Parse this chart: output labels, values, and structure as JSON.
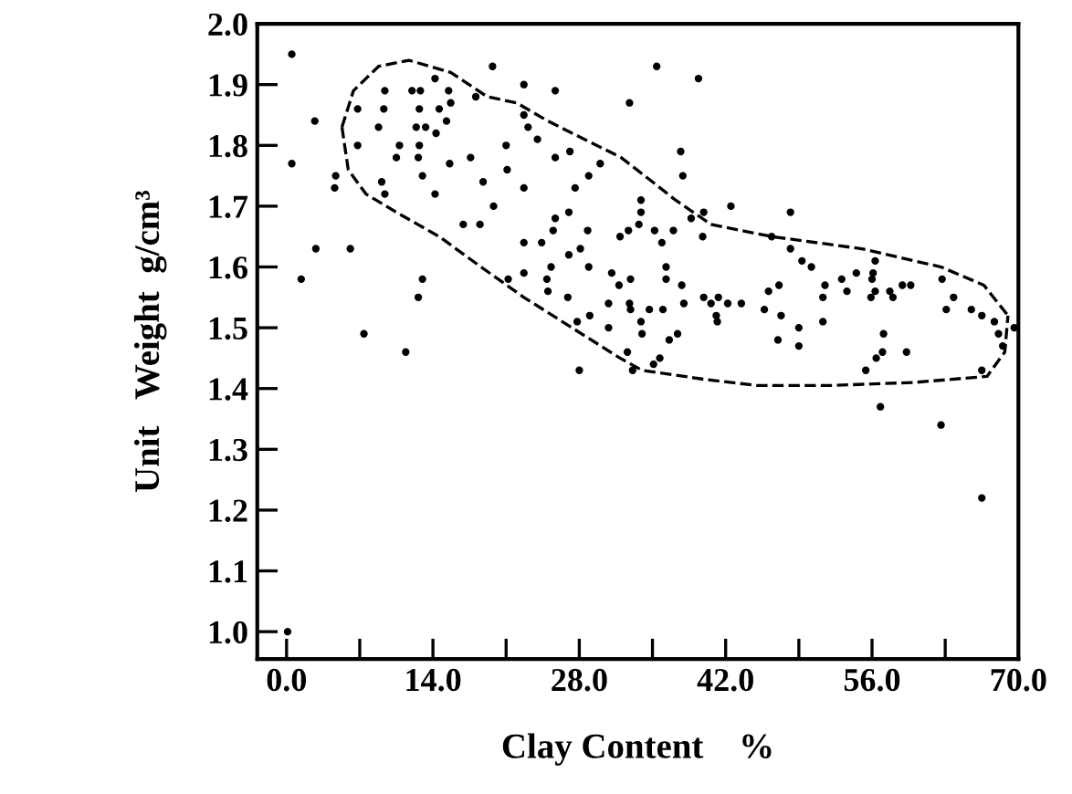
{
  "chart_data": {
    "type": "scatter",
    "xlabel": "Clay Content    %",
    "ylabel": "Unit   Weight  g/cm³",
    "xlim": [
      -2.8,
      70
    ],
    "ylim": [
      0.955,
      2.0
    ],
    "xticks": [
      {
        "value": 0,
        "label": "0.0"
      },
      {
        "value": 7,
        "label": null
      },
      {
        "value": 14,
        "label": "14.0"
      },
      {
        "value": 21,
        "label": null
      },
      {
        "value": 28,
        "label": "28.0"
      },
      {
        "value": 35,
        "label": null
      },
      {
        "value": 42,
        "label": "42.0"
      },
      {
        "value": 49,
        "label": null
      },
      {
        "value": 56,
        "label": "56.0"
      },
      {
        "value": 63,
        "label": null
      },
      {
        "value": 70,
        "label": "70.0"
      }
    ],
    "yticks": [
      {
        "value": 1.0,
        "label": "1.0"
      },
      {
        "value": 1.1,
        "label": "1.1"
      },
      {
        "value": 1.2,
        "label": "1.2"
      },
      {
        "value": 1.3,
        "label": "1.3"
      },
      {
        "value": 1.4,
        "label": "1.4"
      },
      {
        "value": 1.5,
        "label": "1.5"
      },
      {
        "value": 1.6,
        "label": "1.6"
      },
      {
        "value": 1.7,
        "label": "1.7"
      },
      {
        "value": 1.8,
        "label": "1.8"
      },
      {
        "value": 1.9,
        "label": "1.9"
      },
      {
        "value": 2.0,
        "label": "2.0"
      }
    ],
    "series": [
      {
        "color": "#000000",
        "marker": "circle",
        "x": [
          0.5,
          14.2,
          19.7,
          22.7,
          9.4,
          12.0,
          12.8,
          15.5,
          18.1,
          6.8,
          9.3,
          12.7,
          14.6,
          15.7,
          2.7,
          8.8,
          13.3,
          12.4,
          14.3,
          15.3,
          22.7,
          12.7,
          10.8,
          21,
          6.8,
          0.5,
          10.5,
          12.6,
          17.6,
          15.6,
          4.7,
          4.6,
          13,
          9.1,
          9.4,
          21.1,
          18.8,
          14.2,
          22.7,
          19.8,
          16.9,
          18.5,
          2.8,
          6.1,
          22.7,
          1.4,
          13,
          12.6,
          22.7,
          21.2,
          7.4,
          11.4,
          35.4,
          39.4,
          25.7,
          32.8,
          23.1,
          24,
          25.7,
          27.1,
          30,
          28.9,
          37.7,
          37.9,
          27.6,
          33.9,
          33.9,
          27,
          25.7,
          25.5,
          28.8,
          33.7,
          32.7,
          31.9,
          35.2,
          37,
          35.9,
          38.7,
          39.9,
          42.5,
          39.8,
          46.4,
          24.4,
          27,
          28.1,
          25.3,
          28.9,
          31.1,
          31.8,
          32.9,
          36.3,
          36.3,
          24.9,
          25,
          26.9,
          30.8,
          32.8,
          32.9,
          34.7,
          36,
          38,
          37.8,
          39.9,
          40.6,
          41.3,
          42.2,
          43.5,
          41.1,
          41.2,
          45.7,
          46.1,
          47.1,
          27.8,
          29,
          33.9,
          30.8,
          34,
          36.6,
          37.4,
          47,
          32.6,
          35.7,
          35.1,
          28,
          33.1,
          48.2,
          48.2,
          49.3,
          50.2,
          56.3,
          56.1,
          56,
          56.3,
          55.9,
          51.5,
          53.1,
          54.5,
          53.6,
          57.7,
          58,
          58.9,
          59.7,
          62.7,
          63.8,
          63.1,
          65.5,
          66.5,
          67.7,
          68.1,
          68.5,
          69.6,
          51.3,
          51.3,
          47.3,
          49,
          49,
          57.1,
          57,
          56.4,
          55.4,
          59.3,
          66.5,
          56.8,
          62.6,
          66.5,
          0.1
        ],
        "values": [
          1.95,
          1.91,
          1.93,
          1.9,
          1.89,
          1.89,
          1.89,
          1.89,
          1.88,
          1.86,
          1.86,
          1.86,
          1.86,
          1.87,
          1.84,
          1.83,
          1.83,
          1.83,
          1.82,
          1.84,
          1.85,
          1.8,
          1.8,
          1.8,
          1.8,
          1.77,
          1.78,
          1.78,
          1.78,
          1.77,
          1.75,
          1.73,
          1.75,
          1.74,
          1.72,
          1.76,
          1.74,
          1.72,
          1.73,
          1.7,
          1.67,
          1.67,
          1.63,
          1.63,
          1.64,
          1.58,
          1.58,
          1.55,
          1.59,
          1.58,
          1.49,
          1.46,
          1.93,
          1.91,
          1.89,
          1.87,
          1.83,
          1.81,
          1.78,
          1.79,
          1.77,
          1.75,
          1.79,
          1.75,
          1.73,
          1.71,
          1.69,
          1.69,
          1.68,
          1.66,
          1.66,
          1.67,
          1.66,
          1.65,
          1.66,
          1.66,
          1.64,
          1.68,
          1.69,
          1.7,
          1.65,
          1.65,
          1.64,
          1.62,
          1.63,
          1.6,
          1.6,
          1.59,
          1.57,
          1.58,
          1.6,
          1.58,
          1.58,
          1.56,
          1.55,
          1.54,
          1.54,
          1.53,
          1.53,
          1.53,
          1.54,
          1.57,
          1.55,
          1.54,
          1.55,
          1.54,
          1.54,
          1.52,
          1.51,
          1.53,
          1.56,
          1.57,
          1.51,
          1.52,
          1.51,
          1.5,
          1.49,
          1.48,
          1.49,
          1.48,
          1.46,
          1.45,
          1.44,
          1.43,
          1.43,
          1.69,
          1.63,
          1.61,
          1.6,
          1.61,
          1.59,
          1.58,
          1.56,
          1.55,
          1.57,
          1.58,
          1.59,
          1.56,
          1.56,
          1.55,
          1.57,
          1.57,
          1.58,
          1.55,
          1.53,
          1.53,
          1.52,
          1.51,
          1.49,
          1.47,
          1.5,
          1.55,
          1.51,
          1.52,
          1.5,
          1.47,
          1.49,
          1.46,
          1.45,
          1.43,
          1.46,
          1.43,
          1.37,
          1.34,
          1.22,
          1.0
        ]
      },
      {
        "type": "line",
        "color": "#000000",
        "line_style": "dashed",
        "marker": "none",
        "x": [
          5.3,
          6.4,
          8.8,
          11.7,
          15.7,
          19.2,
          22,
          25,
          28.5,
          32,
          35,
          37.2,
          38.9,
          40.6,
          46.4,
          55,
          62.6,
          66.7,
          69
        ],
        "values": [
          1.83,
          1.89,
          1.93,
          1.94,
          1.92,
          1.88,
          1.87,
          1.84,
          1.81,
          1.78,
          1.74,
          1.71,
          1.69,
          1.67,
          1.65,
          1.63,
          1.6,
          1.57,
          1.52
        ]
      },
      {
        "type": "line",
        "color": "#000000",
        "line_style": "dashed",
        "marker": "none",
        "x": [
          5.3,
          5.9,
          7.6,
          10.5,
          14.6,
          18.6,
          22.7,
          27.3,
          31.9,
          34,
          40,
          45,
          52,
          60,
          67,
          68.7,
          69
        ],
        "values": [
          1.83,
          1.76,
          1.72,
          1.69,
          1.65,
          1.6,
          1.55,
          1.5,
          1.45,
          1.43,
          1.415,
          1.405,
          1.405,
          1.41,
          1.42,
          1.46,
          1.52
        ]
      }
    ]
  }
}
